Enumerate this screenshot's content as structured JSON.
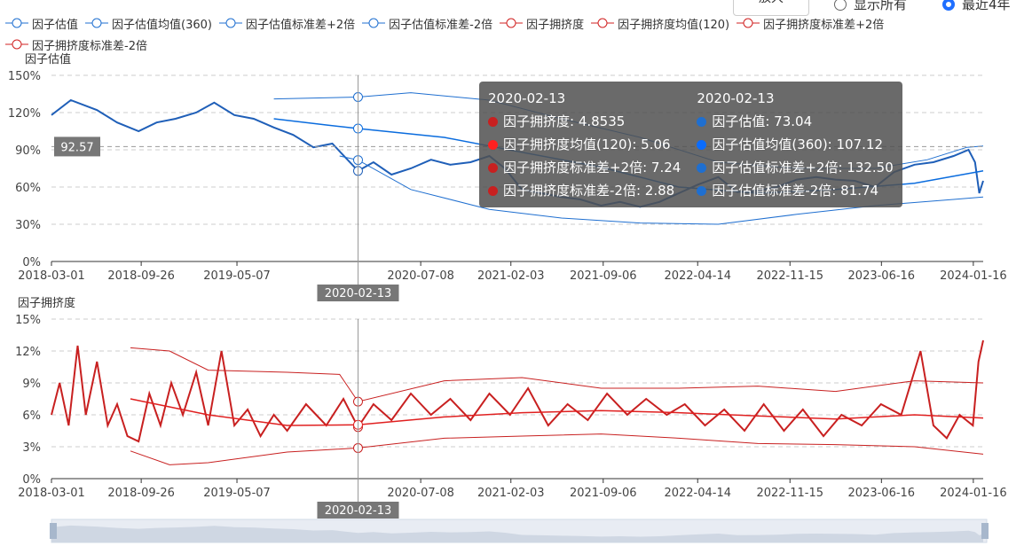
{
  "controls": {
    "zoom_button": "放大",
    "radio_all": "显示所有",
    "radio_recent": "最近4年",
    "selected": "最近4年"
  },
  "legend": [
    {
      "name": "因子估值",
      "color": "#1f6fd0"
    },
    {
      "name": "因子估值均值(360)",
      "color": "#1f6fd0"
    },
    {
      "name": "因子估值标准差+2倍",
      "color": "#1f6fd0"
    },
    {
      "name": "因子估值标准差-2倍",
      "color": "#1f6fd0"
    },
    {
      "name": "因子拥挤度",
      "color": "#d02020"
    },
    {
      "name": "因子拥挤度均值(120)",
      "color": "#d02020"
    },
    {
      "name": "因子拥挤度标准差+2倍",
      "color": "#d02020"
    },
    {
      "name": "因子拥挤度标准差-2倍",
      "color": "#d02020"
    }
  ],
  "crosshair": {
    "date": "2020-02-13",
    "y_readout": "92.57"
  },
  "tooltip": {
    "crowding": {
      "date": "2020-02-13",
      "items": [
        {
          "label": "因子拥挤度: 4.8535",
          "color": "#c82020"
        },
        {
          "label": "因子拥挤度均值(120): 5.06",
          "color": "#ff2020"
        },
        {
          "label": "因子拥挤度标准差+2倍: 7.24",
          "color": "#c82020"
        },
        {
          "label": "因子拥挤度标准差-2倍: 2.88",
          "color": "#c82020"
        }
      ]
    },
    "valuation": {
      "date": "2020-02-13",
      "items": [
        {
          "label": "因子估值: 73.04",
          "color": "#1f6fd0"
        },
        {
          "label": "因子估值均值(360): 107.12",
          "color": "#0a6cff"
        },
        {
          "label": "因子估值标准差+2倍: 132.50",
          "color": "#1f6fd0"
        },
        {
          "label": "因子估值标准差-2倍: 81.74",
          "color": "#1f6fd0"
        }
      ]
    }
  },
  "chart_data": [
    {
      "type": "line",
      "ylabel": "因子估值",
      "ylim": [
        0,
        150
      ],
      "yticks": [
        "0%",
        "30%",
        "60%",
        "90%",
        "120%",
        "150%"
      ],
      "xlim": [
        "2018-03-01",
        "2024-02-08"
      ],
      "xticks": [
        "2018-03-01",
        "2018-09-26",
        "2019-05-07",
        "2020-07-08",
        "2021-02-03",
        "2021-09-06",
        "2022-04-14",
        "2022-11-15",
        "2023-06-16",
        "2024-01-16"
      ],
      "grid": true,
      "series": [
        {
          "name": "因子估值",
          "color": "#1f5fb8",
          "width": 2,
          "points": [
            [
              "2018-03-01",
              118
            ],
            [
              "2018-04-15",
              130
            ],
            [
              "2018-06-15",
              122
            ],
            [
              "2018-08-01",
              112
            ],
            [
              "2018-09-20",
              105
            ],
            [
              "2018-11-01",
              112
            ],
            [
              "2018-12-15",
              115
            ],
            [
              "2019-02-01",
              120
            ],
            [
              "2019-03-15",
              128
            ],
            [
              "2019-05-01",
              118
            ],
            [
              "2019-06-15",
              115
            ],
            [
              "2019-08-01",
              108
            ],
            [
              "2019-09-15",
              102
            ],
            [
              "2019-11-01",
              92
            ],
            [
              "2019-12-15",
              95
            ],
            [
              "2020-02-13",
              73
            ],
            [
              "2020-03-20",
              80
            ],
            [
              "2020-05-01",
              70
            ],
            [
              "2020-06-15",
              75
            ],
            [
              "2020-08-01",
              82
            ],
            [
              "2020-09-15",
              78
            ],
            [
              "2020-11-01",
              80
            ],
            [
              "2020-12-15",
              85
            ],
            [
              "2021-01-20",
              75
            ],
            [
              "2021-03-01",
              58
            ],
            [
              "2021-04-15",
              55
            ],
            [
              "2021-06-01",
              52
            ],
            [
              "2021-07-15",
              50
            ],
            [
              "2021-09-01",
              45
            ],
            [
              "2021-10-15",
              48
            ],
            [
              "2021-12-01",
              44
            ],
            [
              "2022-01-15",
              48
            ],
            [
              "2022-03-01",
              55
            ],
            [
              "2022-04-15",
              62
            ],
            [
              "2022-06-01",
              68
            ],
            [
              "2022-07-15",
              56
            ],
            [
              "2022-09-01",
              57
            ],
            [
              "2022-10-15",
              60
            ],
            [
              "2022-12-01",
              66
            ],
            [
              "2023-01-15",
              68
            ],
            [
              "2023-03-01",
              66
            ],
            [
              "2023-04-15",
              65
            ],
            [
              "2023-06-01",
              60
            ],
            [
              "2023-07-15",
              72
            ],
            [
              "2023-09-01",
              78
            ],
            [
              "2023-10-15",
              80
            ],
            [
              "2023-12-01",
              85
            ],
            [
              "2024-01-05",
              90
            ],
            [
              "2024-01-20",
              80
            ],
            [
              "2024-01-30",
              55
            ],
            [
              "2024-02-08",
              65
            ]
          ]
        },
        {
          "name": "因子估值均值(360)",
          "color": "#0a6cde",
          "width": 1.5,
          "points": [
            [
              "2019-08-01",
              115
            ],
            [
              "2019-12-01",
              110
            ],
            [
              "2020-02-13",
              107.12
            ],
            [
              "2020-09-01",
              100
            ],
            [
              "2021-03-01",
              88
            ],
            [
              "2021-09-01",
              76
            ],
            [
              "2022-03-01",
              60
            ],
            [
              "2022-09-01",
              55
            ],
            [
              "2023-03-01",
              58
            ],
            [
              "2023-09-01",
              63
            ],
            [
              "2024-02-08",
              73
            ]
          ]
        },
        {
          "name": "因子估值标准差+2倍",
          "color": "#1f6fd0",
          "width": 1,
          "points": [
            [
              "2019-08-01",
              131
            ],
            [
              "2020-02-13",
              132.5
            ],
            [
              "2020-06-15",
              136
            ],
            [
              "2020-12-15",
              130
            ],
            [
              "2021-06-01",
              115
            ],
            [
              "2021-12-01",
              100
            ],
            [
              "2022-06-01",
              80
            ],
            [
              "2022-12-01",
              75
            ],
            [
              "2023-06-01",
              75
            ],
            [
              "2023-10-01",
              82
            ],
            [
              "2024-01-01",
              92
            ],
            [
              "2024-02-08",
              93
            ]
          ]
        },
        {
          "name": "因子估值标准差-2倍",
          "color": "#1f6fd0",
          "width": 1,
          "points": [
            [
              "2020-01-01",
              85
            ],
            [
              "2020-02-13",
              81.74
            ],
            [
              "2020-06-15",
              58
            ],
            [
              "2020-12-15",
              42
            ],
            [
              "2021-06-01",
              35
            ],
            [
              "2021-12-01",
              31
            ],
            [
              "2022-06-01",
              30
            ],
            [
              "2022-12-01",
              38
            ],
            [
              "2023-06-01",
              45
            ],
            [
              "2023-12-01",
              50
            ],
            [
              "2024-02-08",
              52
            ]
          ]
        }
      ]
    },
    {
      "type": "line",
      "ylabel": "因子拥挤度",
      "ylim": [
        0,
        15
      ],
      "yticks": [
        "0%",
        "3%",
        "6%",
        "9%",
        "12%",
        "15%"
      ],
      "xlim": [
        "2018-03-01",
        "2024-02-08"
      ],
      "xticks": [
        "2018-03-01",
        "2018-09-26",
        "2019-05-07",
        "2020-07-08",
        "2021-02-03",
        "2021-09-06",
        "2022-04-14",
        "2022-11-15",
        "2023-06-16",
        "2024-01-16"
      ],
      "grid": true,
      "series": [
        {
          "name": "因子拥挤度",
          "color": "#c82020",
          "width": 2,
          "points": [
            [
              "2018-03-01",
              6
            ],
            [
              "2018-03-20",
              9
            ],
            [
              "2018-04-10",
              5
            ],
            [
              "2018-05-01",
              12.5
            ],
            [
              "2018-05-20",
              6
            ],
            [
              "2018-06-15",
              11
            ],
            [
              "2018-07-10",
              5
            ],
            [
              "2018-08-01",
              7
            ],
            [
              "2018-08-25",
              4
            ],
            [
              "2018-09-20",
              3.5
            ],
            [
              "2018-10-15",
              8
            ],
            [
              "2018-11-10",
              5
            ],
            [
              "2018-12-05",
              9
            ],
            [
              "2019-01-01",
              6
            ],
            [
              "2019-02-01",
              10
            ],
            [
              "2019-03-01",
              5
            ],
            [
              "2019-04-01",
              12
            ],
            [
              "2019-05-01",
              5
            ],
            [
              "2019-06-01",
              6.5
            ],
            [
              "2019-07-01",
              4
            ],
            [
              "2019-08-01",
              6
            ],
            [
              "2019-09-01",
              4.5
            ],
            [
              "2019-10-15",
              7
            ],
            [
              "2019-12-01",
              5
            ],
            [
              "2020-01-10",
              7.5
            ],
            [
              "2020-02-13",
              4.85
            ],
            [
              "2020-03-20",
              7
            ],
            [
              "2020-05-01",
              5.5
            ],
            [
              "2020-06-15",
              8
            ],
            [
              "2020-08-01",
              6
            ],
            [
              "2020-09-15",
              7.5
            ],
            [
              "2020-11-01",
              5.5
            ],
            [
              "2020-12-15",
              8
            ],
            [
              "2021-02-01",
              6
            ],
            [
              "2021-03-15",
              8.5
            ],
            [
              "2021-05-01",
              5
            ],
            [
              "2021-06-15",
              7
            ],
            [
              "2021-08-01",
              5.5
            ],
            [
              "2021-09-15",
              8
            ],
            [
              "2021-11-01",
              6
            ],
            [
              "2021-12-15",
              7.5
            ],
            [
              "2022-02-01",
              6
            ],
            [
              "2022-03-15",
              7
            ],
            [
              "2022-05-01",
              5
            ],
            [
              "2022-06-15",
              6.5
            ],
            [
              "2022-08-01",
              4.5
            ],
            [
              "2022-09-15",
              7
            ],
            [
              "2022-11-01",
              4.5
            ],
            [
              "2022-12-15",
              6.5
            ],
            [
              "2023-02-01",
              4
            ],
            [
              "2023-03-15",
              6
            ],
            [
              "2023-05-01",
              5
            ],
            [
              "2023-06-15",
              7
            ],
            [
              "2023-08-01",
              6
            ],
            [
              "2023-09-15",
              12
            ],
            [
              "2023-10-15",
              5
            ],
            [
              "2023-11-15",
              3.8
            ],
            [
              "2023-12-15",
              6
            ],
            [
              "2024-01-15",
              5
            ],
            [
              "2024-01-28",
              11
            ],
            [
              "2024-02-08",
              13
            ]
          ]
        },
        {
          "name": "因子拥挤度均值(120)",
          "color": "#e02020",
          "width": 1.5,
          "points": [
            [
              "2018-09-01",
              7.5
            ],
            [
              "2019-03-01",
              6
            ],
            [
              "2019-09-01",
              5
            ],
            [
              "2020-02-13",
              5.06
            ],
            [
              "2020-09-01",
              5.8
            ],
            [
              "2021-03-01",
              6.2
            ],
            [
              "2021-09-01",
              6.4
            ],
            [
              "2022-03-01",
              6.2
            ],
            [
              "2022-09-01",
              5.9
            ],
            [
              "2023-03-01",
              5.6
            ],
            [
              "2023-09-01",
              6
            ],
            [
              "2024-02-08",
              5.7
            ]
          ]
        },
        {
          "name": "因子拥挤度标准差+2倍",
          "color": "#c82020",
          "width": 1,
          "points": [
            [
              "2018-09-01",
              12.3
            ],
            [
              "2018-12-01",
              12
            ],
            [
              "2019-03-01",
              10.2
            ],
            [
              "2019-09-01",
              10
            ],
            [
              "2020-01-01",
              9.8
            ],
            [
              "2020-02-13",
              7.24
            ],
            [
              "2020-09-01",
              9.2
            ],
            [
              "2021-03-01",
              9.5
            ],
            [
              "2021-09-01",
              8.5
            ],
            [
              "2022-03-01",
              8.5
            ],
            [
              "2022-09-01",
              8.7
            ],
            [
              "2023-03-01",
              8.2
            ],
            [
              "2023-09-01",
              9.2
            ],
            [
              "2024-02-08",
              9
            ]
          ]
        },
        {
          "name": "因子拥挤度标准差-2倍",
          "color": "#c82020",
          "width": 1,
          "points": [
            [
              "2018-09-01",
              2.6
            ],
            [
              "2018-12-01",
              1.3
            ],
            [
              "2019-03-01",
              1.5
            ],
            [
              "2019-09-01",
              2.5
            ],
            [
              "2020-02-13",
              2.88
            ],
            [
              "2020-09-01",
              3.8
            ],
            [
              "2021-03-01",
              4
            ],
            [
              "2021-09-01",
              4.2
            ],
            [
              "2022-03-01",
              3.8
            ],
            [
              "2022-09-01",
              3.3
            ],
            [
              "2023-03-01",
              3.2
            ],
            [
              "2023-09-01",
              3
            ],
            [
              "2024-02-08",
              2.3
            ]
          ]
        }
      ]
    }
  ]
}
